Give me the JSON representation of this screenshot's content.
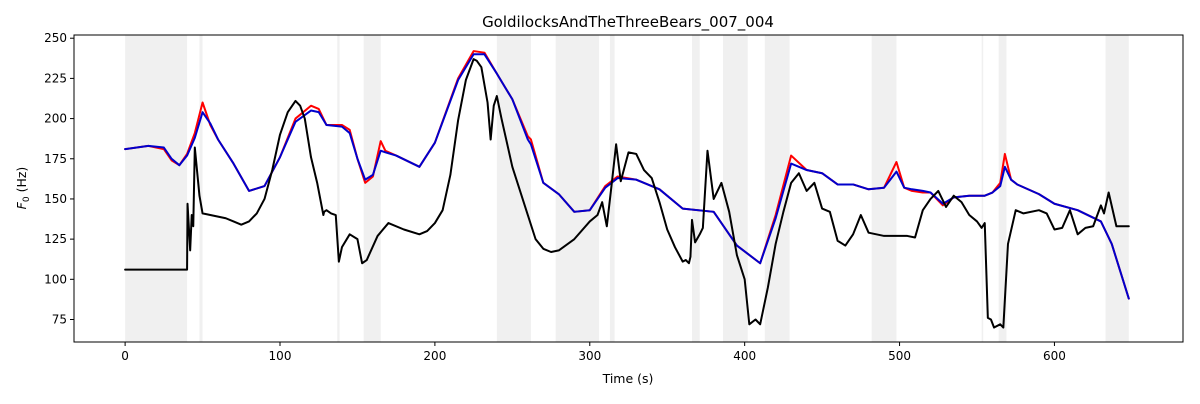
{
  "chart_data": {
    "type": "line",
    "title": "GoldilocksAndTheThreeBears_007_004",
    "xlabel": "Time (s)",
    "ylabel": "F0 (Hz)",
    "xlim": [
      -33,
      683
    ],
    "ylim": [
      61,
      252
    ],
    "xticks": [
      0,
      100,
      200,
      300,
      400,
      500,
      600
    ],
    "yticks": [
      75,
      100,
      125,
      150,
      175,
      200,
      225,
      250
    ],
    "grid": false,
    "legend": "none",
    "shaded_regions": [
      [
        0,
        40
      ],
      [
        48,
        50
      ],
      [
        137,
        138.5
      ],
      [
        154,
        165
      ],
      [
        240,
        262
      ],
      [
        278,
        306
      ],
      [
        313,
        316
      ],
      [
        366,
        371
      ],
      [
        386,
        402
      ],
      [
        413,
        429
      ],
      [
        482,
        498
      ],
      [
        553,
        554
      ],
      [
        564,
        569
      ],
      [
        633,
        648
      ]
    ],
    "series": [
      {
        "color": "#ff0000",
        "x": [
          0,
          15,
          25,
          30,
          35,
          40,
          45,
          50,
          55,
          60,
          70,
          80,
          90,
          100,
          110,
          120,
          125,
          130,
          140,
          145,
          150,
          155,
          160,
          165,
          168,
          175,
          190,
          200,
          215,
          225,
          232,
          240,
          250,
          260,
          262,
          270,
          280,
          290,
          300,
          310,
          318,
          330,
          345,
          360,
          380,
          395,
          410,
          420,
          430,
          440,
          450,
          460,
          470,
          480,
          490,
          498,
          503,
          508,
          515,
          520,
          528,
          535,
          545,
          555,
          560,
          565,
          568,
          572,
          576,
          590,
          600,
          615,
          630,
          637,
          648
        ],
        "y": [
          181,
          183,
          181,
          174,
          171,
          178,
          191,
          210,
          196,
          187,
          172,
          155,
          158,
          176,
          200,
          208,
          206,
          196,
          196,
          193,
          175,
          160,
          164,
          186,
          180,
          177,
          170,
          185,
          225,
          242,
          241,
          228,
          212,
          189,
          187,
          160,
          153,
          142,
          143,
          158,
          164,
          162,
          156,
          144,
          142,
          121,
          110,
          140,
          177,
          168,
          166,
          159,
          159,
          156,
          157,
          173,
          157,
          155,
          154,
          154,
          146,
          151,
          152,
          152,
          154,
          160,
          178,
          162,
          159,
          153,
          147,
          143,
          136,
          122,
          88
        ]
      },
      {
        "color": "#0000cc",
        "x": [
          0,
          15,
          25,
          30,
          35,
          40,
          45,
          50,
          55,
          60,
          70,
          80,
          90,
          100,
          110,
          120,
          125,
          130,
          140,
          145,
          150,
          155,
          160,
          165,
          168,
          175,
          190,
          200,
          215,
          225,
          232,
          240,
          250,
          260,
          262,
          270,
          280,
          290,
          300,
          310,
          318,
          330,
          345,
          360,
          380,
          395,
          410,
          420,
          430,
          440,
          450,
          460,
          470,
          480,
          490,
          498,
          503,
          508,
          515,
          520,
          528,
          535,
          545,
          555,
          560,
          565,
          568,
          572,
          576,
          590,
          600,
          615,
          630,
          637,
          648
        ],
        "y": [
          181,
          183,
          182,
          175,
          171,
          177,
          188,
          204,
          197,
          187,
          172,
          155,
          158,
          176,
          198,
          205,
          204,
          196,
          195,
          191,
          175,
          162,
          165,
          180,
          179,
          177,
          170,
          185,
          224,
          240,
          240,
          228,
          212,
          187,
          184,
          160,
          153,
          142,
          143,
          157,
          163,
          162,
          156,
          144,
          142,
          121,
          110,
          138,
          172,
          168,
          166,
          159,
          159,
          156,
          157,
          167,
          157,
          156,
          155,
          154,
          147,
          151,
          152,
          152,
          154,
          158,
          170,
          162,
          159,
          153,
          147,
          143,
          136,
          122,
          88
        ]
      },
      {
        "color": "#000000",
        "x": [
          0,
          40,
          40.3,
          42,
          43,
          44,
          45,
          48,
          50,
          55,
          60,
          65,
          70,
          75,
          80,
          85,
          90,
          95,
          100,
          105,
          110,
          113,
          116,
          120,
          124,
          128,
          128.5,
          130,
          133,
          136,
          138,
          140,
          145,
          150,
          153,
          156,
          163,
          170,
          180,
          190,
          195,
          200,
          205,
          210,
          215,
          220,
          225,
          227,
          230,
          234,
          236,
          238,
          240,
          243,
          250,
          260,
          265,
          270,
          275,
          280,
          290,
          300,
          305,
          308,
          311,
          314,
          317,
          320,
          325,
          330,
          335,
          340,
          345,
          350,
          355,
          360,
          362,
          364,
          365,
          366,
          368,
          371,
          373,
          376,
          380,
          385,
          390,
          395,
          400,
          403,
          407,
          410,
          415,
          420,
          425,
          430,
          435,
          440,
          445,
          450,
          455,
          460,
          465,
          470,
          475,
          480,
          490,
          495,
          500,
          505,
          510,
          515,
          520,
          525,
          530,
          535,
          540,
          545,
          550,
          553,
          555,
          557,
          559,
          561,
          565,
          567,
          570,
          575,
          580,
          590,
          595,
          600,
          605,
          610,
          615,
          620,
          625,
          630,
          632,
          635,
          640,
          648
        ],
        "y": [
          106,
          106,
          147,
          118,
          140,
          133,
          182,
          152,
          141,
          140,
          139,
          138,
          136,
          134,
          136,
          141,
          150,
          168,
          190,
          204,
          211,
          208,
          200,
          176,
          160,
          140,
          142,
          143,
          141,
          140,
          111,
          120,
          128,
          125,
          110,
          112,
          127,
          135,
          131,
          128,
          130,
          135,
          143,
          165,
          199,
          224,
          237,
          236,
          232,
          210,
          187,
          208,
          214,
          200,
          170,
          140,
          125,
          119,
          117,
          118,
          125,
          136,
          140,
          148,
          133,
          158,
          184,
          161,
          179,
          178,
          168,
          163,
          148,
          131,
          120,
          111,
          112,
          110,
          114,
          137,
          123,
          128,
          132,
          180,
          150,
          160,
          142,
          115,
          100,
          72,
          75,
          72,
          95,
          122,
          142,
          160,
          166,
          155,
          160,
          144,
          142,
          124,
          121,
          128,
          140,
          129,
          127,
          127,
          127,
          127,
          126,
          143,
          150,
          155,
          145,
          152,
          148,
          140,
          136,
          132,
          135,
          76,
          75,
          70,
          72,
          70,
          122,
          143,
          141,
          143,
          141,
          131,
          132,
          143,
          128,
          132,
          133,
          146,
          141,
          154,
          133,
          133
        ]
      }
    ]
  }
}
